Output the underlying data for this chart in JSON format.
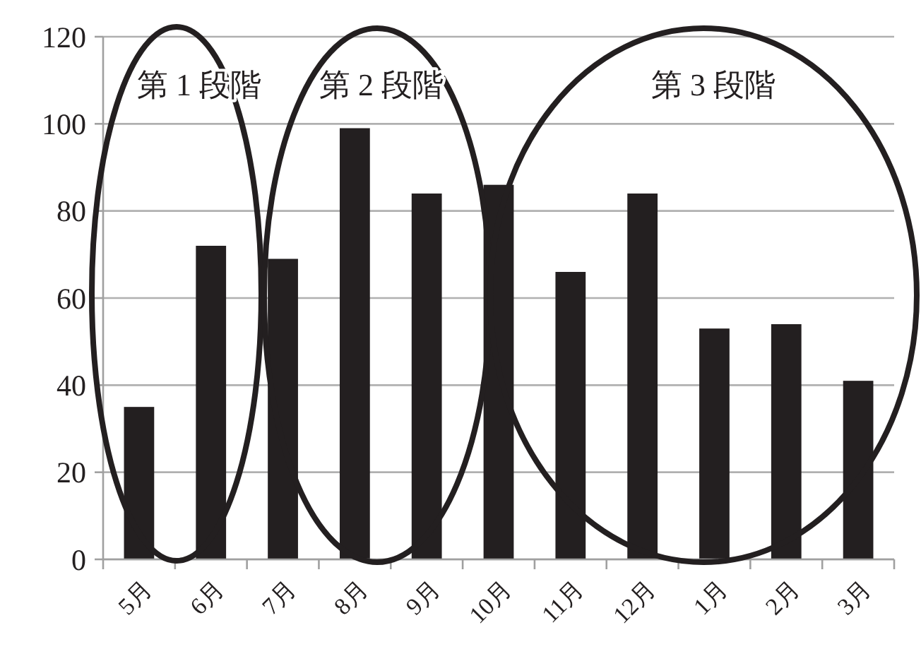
{
  "chart_data": {
    "type": "bar",
    "categories": [
      "5月",
      "6月",
      "7月",
      "8月",
      "9月",
      "10月",
      "11月",
      "12月",
      "1月",
      "2月",
      "3月"
    ],
    "values": [
      35,
      72,
      69,
      99,
      84,
      86,
      66,
      84,
      53,
      54,
      41
    ],
    "color": "#231f20",
    "ylim": [
      0,
      120
    ],
    "yticks": [
      0,
      20,
      40,
      60,
      80,
      100,
      120
    ],
    "grid": "y",
    "annotations": [
      "第 1 段階",
      "第 2 段階",
      "第 3 段階"
    ]
  }
}
